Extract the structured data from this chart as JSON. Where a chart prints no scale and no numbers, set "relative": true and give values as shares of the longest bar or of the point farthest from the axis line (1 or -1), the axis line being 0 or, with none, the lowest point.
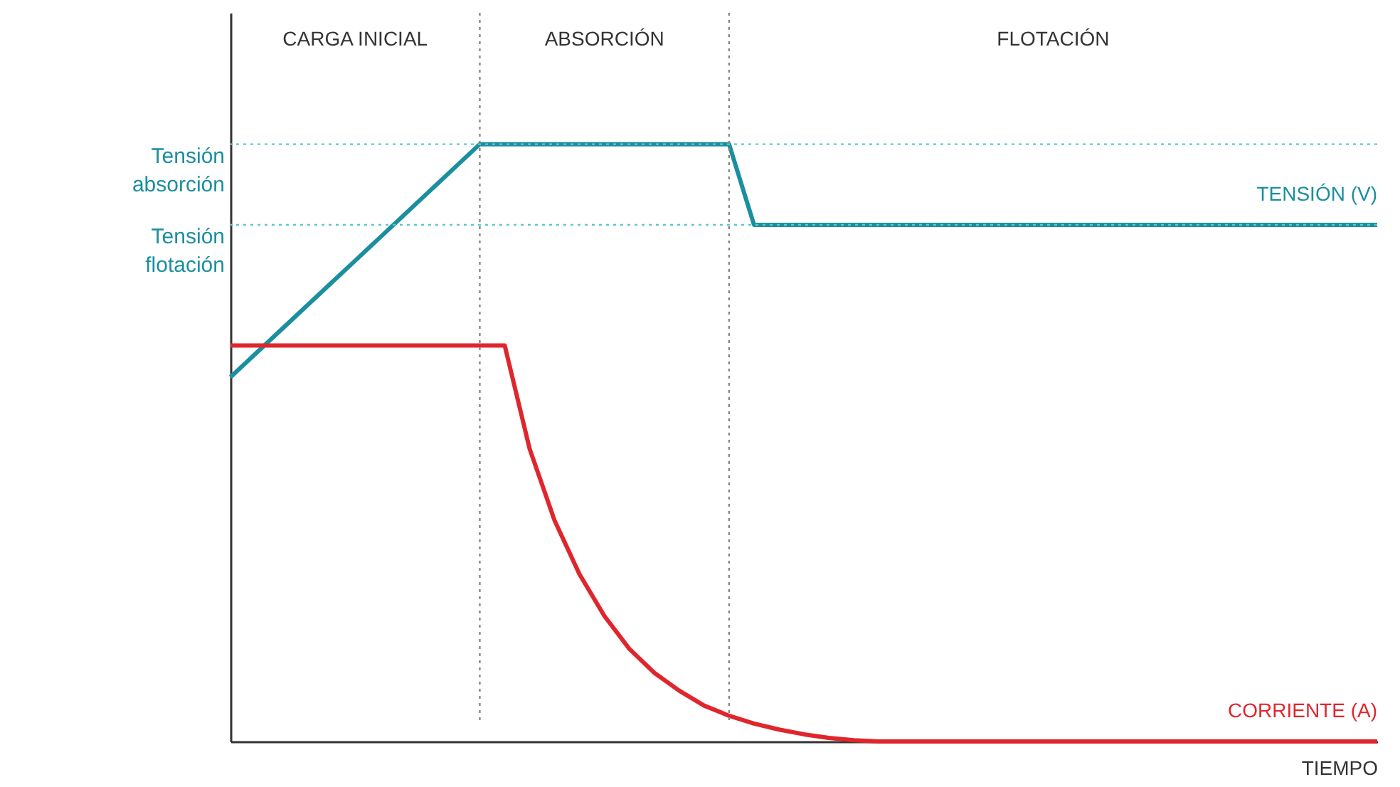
{
  "chart_data": {
    "type": "line",
    "relative": true,
    "xlabel": "TIEMPO",
    "legend": false,
    "marker": "none",
    "line_style": "solid",
    "categories": [
      null,
      null,
      null,
      null,
      null,
      null,
      null,
      null,
      null,
      null,
      null,
      null,
      null,
      null,
      null,
      null,
      null,
      null,
      null,
      null,
      null,
      null,
      null,
      null,
      null,
      null,
      null,
      null,
      null,
      null,
      null,
      null,
      null,
      null,
      null,
      null,
      null,
      null,
      null,
      null,
      null,
      null,
      null,
      null,
      null,
      null,
      null
    ],
    "series": [
      {
        "name": "TENSIÓN (V)",
        "color": "#1b8f9f",
        "values": [
          0.61,
          0.649,
          0.688,
          0.727,
          0.766,
          0.805,
          0.844,
          0.883,
          0.922,
          0.961,
          1,
          1,
          1,
          1,
          1,
          1,
          1,
          1,
          1,
          1,
          1,
          0.865,
          0.865,
          0.865,
          0.865,
          0.865,
          0.865,
          0.865,
          0.865,
          0.865,
          0.865,
          0.865,
          0.865,
          0.865,
          0.865,
          0.865,
          0.865,
          0.865,
          0.865,
          0.865,
          0.865,
          0.865,
          0.865,
          0.865,
          0.865,
          0.865,
          0.865
        ]
      },
      {
        "name": "CORRIENTE (A)",
        "color": "#e0262d",
        "values": [
          0.663,
          0.663,
          0.663,
          0.663,
          0.663,
          0.663,
          0.663,
          0.663,
          0.663,
          0.663,
          0.663,
          0.663,
          0.49,
          0.37,
          0.28,
          0.21,
          0.155,
          0.115,
          0.085,
          0.06,
          0.043,
          0.03,
          0.02,
          0.012,
          0.006,
          0.002,
          0,
          0,
          0,
          0,
          0,
          0,
          0,
          0,
          0,
          0,
          0,
          0,
          0,
          0,
          0,
          0,
          0,
          0,
          0,
          0,
          0
        ]
      }
    ],
    "ref_lines": [
      {
        "axis": "y",
        "value": 1,
        "label": "Tensión absorción",
        "color": "#5cc8d0",
        "line_style": "dotted"
      },
      {
        "axis": "y",
        "value": 0.865,
        "label": "Tensión flotación",
        "color": "#5cc8d0",
        "line_style": "dotted"
      }
    ],
    "annotations": [
      "CARGA INICIAL",
      "ABSORCIÓN",
      "FLOTACIÓN"
    ]
  }
}
